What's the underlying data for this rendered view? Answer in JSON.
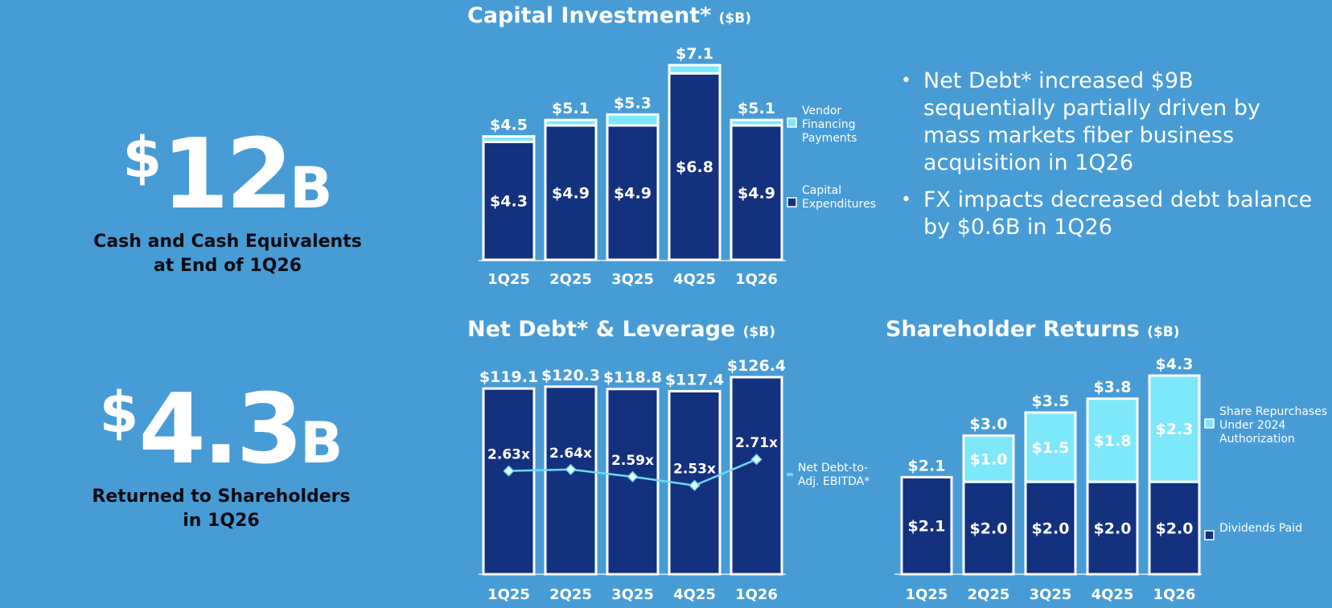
{
  "kpis": [
    {
      "currency": "$",
      "value": "12",
      "unit": "B",
      "label_line1": "Cash and Cash Equivalents",
      "label_line2": "at End of 1Q26"
    },
    {
      "currency": "$",
      "value": "4.3",
      "unit": "B",
      "label_line1": "Returned to Shareholders",
      "label_line2": "in 1Q26"
    }
  ],
  "bullets": [
    "Net Debt* increased $9B sequentially partially driven by mass markets fiber business acquisition in 1Q26",
    "FX impacts decreased debt balance by $0.6B in 1Q26"
  ],
  "colors": {
    "background": "#479cd6",
    "navy": "#14317f",
    "cyan": "#7ee8fb",
    "line": "#6fd9f2",
    "bar_border": "#ffffff"
  },
  "chart_data": [
    {
      "type": "bar",
      "stacked": true,
      "title": "Capital Investment*",
      "unit": "($B)",
      "categories": [
        "1Q25",
        "2Q25",
        "3Q25",
        "4Q25",
        "1Q26"
      ],
      "series": [
        {
          "name": "Capital Expenditures",
          "values": [
            4.3,
            4.9,
            4.9,
            6.8,
            4.9
          ],
          "labels": [
            "$4.3",
            "$4.9",
            "$4.9",
            "$6.8",
            "$4.9"
          ],
          "color": "#14317f"
        },
        {
          "name": "Vendor Financing Payments",
          "values": [
            0.2,
            0.2,
            0.4,
            0.3,
            0.2
          ],
          "color": "#7ee8fb"
        }
      ],
      "totals": [
        "$4.5",
        "$5.1",
        "$5.3",
        "$7.1",
        "$5.1"
      ],
      "total_values": [
        4.5,
        5.1,
        5.3,
        7.1,
        5.1
      ],
      "legend": [
        {
          "lines": [
            "Vendor",
            "Financing",
            "Payments"
          ],
          "color": "#7ee8fb"
        },
        {
          "lines": [
            "Capital",
            "Expenditures"
          ],
          "color": "#14317f"
        }
      ],
      "legend_position": "right",
      "ylim": [
        0,
        7.1
      ]
    },
    {
      "type": "bar",
      "title": "Net Debt* & Leverage",
      "unit": "($B)",
      "categories": [
        "1Q25",
        "2Q25",
        "3Q25",
        "4Q25",
        "1Q26"
      ],
      "series": [
        {
          "name": "Net Debt*",
          "values": [
            119.1,
            120.3,
            118.8,
            117.4,
            126.4
          ],
          "labels": [
            "$119.1",
            "$120.3",
            "$118.8",
            "$117.4",
            "$126.4"
          ],
          "color": "#14317f"
        }
      ],
      "line_series": {
        "values": [
          2.63,
          2.64,
          2.59,
          2.53,
          2.71
        ],
        "labels": [
          "2.63x",
          "2.64x",
          "2.59x",
          "2.53x",
          "2.71x"
        ],
        "color": "#6fd9f2",
        "legend_lines": [
          "Net Debt-to-",
          "Adj. EBITDA*"
        ]
      },
      "legend_position": "right",
      "ylim": [
        0,
        126.4
      ]
    },
    {
      "type": "bar",
      "stacked": true,
      "title": "Shareholder Returns",
      "unit": "($B)",
      "categories": [
        "1Q25",
        "2Q25",
        "3Q25",
        "4Q25",
        "1Q26"
      ],
      "series": [
        {
          "name": "Dividends Paid",
          "values": [
            2.1,
            2.0,
            2.0,
            2.0,
            2.0
          ],
          "labels": [
            "$2.1",
            "$2.0",
            "$2.0",
            "$2.0",
            "$2.0"
          ],
          "color": "#14317f"
        },
        {
          "name": "Share Repurchases Under 2024 Authorization",
          "values": [
            0,
            1.0,
            1.5,
            1.8,
            2.3
          ],
          "labels": [
            "",
            "$1.0",
            "$1.5",
            "$1.8",
            "$2.3"
          ],
          "color": "#7ee8fb"
        }
      ],
      "totals": [
        "$2.1",
        "$3.0",
        "$3.5",
        "$3.8",
        "$4.3"
      ],
      "total_values": [
        2.1,
        3.0,
        3.5,
        3.8,
        4.3
      ],
      "legend": [
        {
          "lines": [
            "Share Repurchases",
            "Under 2024",
            "Authorization"
          ],
          "color": "#7ee8fb"
        },
        {
          "lines": [
            "Dividends Paid"
          ],
          "color": "#14317f"
        }
      ],
      "legend_position": "right",
      "ylim": [
        0,
        4.3
      ]
    }
  ]
}
